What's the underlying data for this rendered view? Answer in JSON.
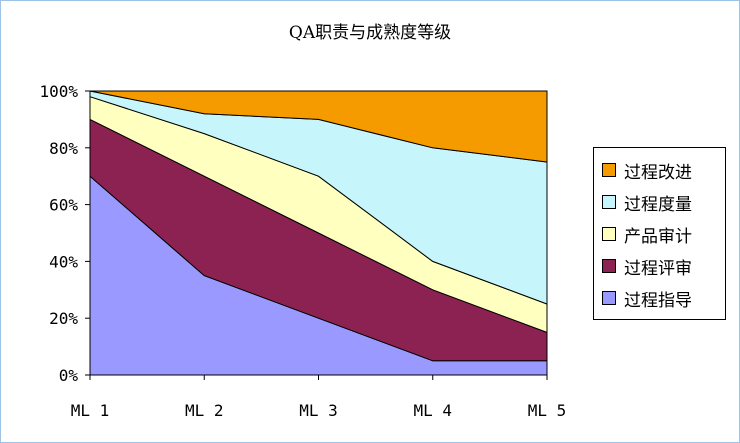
{
  "chart_data": {
    "type": "area",
    "stacked": true,
    "percent": true,
    "title": "QA职责与成熟度等级",
    "categories": [
      "ML 1",
      "ML 2",
      "ML 3",
      "ML 4",
      "ML 5"
    ],
    "ylim": [
      0,
      100
    ],
    "y_ticks": [
      "0%",
      "20%",
      "40%",
      "60%",
      "80%",
      "100%"
    ],
    "legend_position": "right",
    "series": [
      {
        "name": "过程指导",
        "color": "#9999ff",
        "values": [
          70,
          35,
          20,
          5,
          5
        ]
      },
      {
        "name": "过程评审",
        "color": "#8b2252",
        "values": [
          20,
          35,
          30,
          25,
          10
        ]
      },
      {
        "name": "产品审计",
        "color": "#ffffc0",
        "values": [
          8,
          15,
          20,
          10,
          10
        ]
      },
      {
        "name": "过程度量",
        "color": "#c6f6fb",
        "values": [
          2,
          7,
          20,
          40,
          50
        ]
      },
      {
        "name": "过程改进",
        "color": "#f59b00",
        "values": [
          0,
          8,
          10,
          20,
          25
        ]
      }
    ]
  }
}
